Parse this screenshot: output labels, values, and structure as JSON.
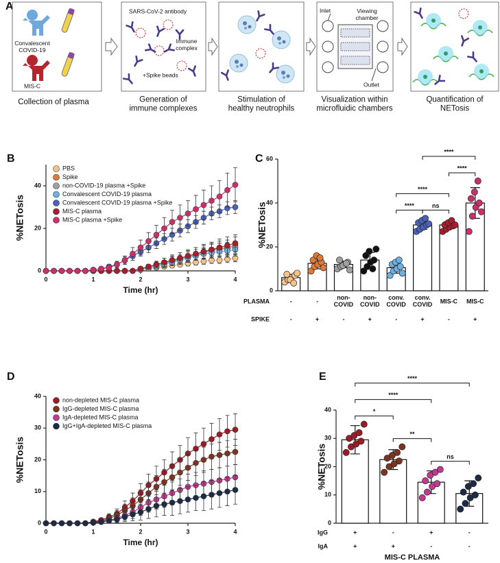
{
  "panel_a": {
    "label": "A",
    "steps": [
      {
        "caption": "Collection of plasma",
        "labels": [
          "Convalescent\nCOVID-19",
          "MIS-C"
        ]
      },
      {
        "caption": "Generation of\nimmune complexes",
        "labels": [
          "SARS-CoV-2 antibody",
          "Immune\ncomplex",
          "+Spike beads"
        ]
      },
      {
        "caption": "Stimulation of\nhealthy neutrophils"
      },
      {
        "caption": "Visualization within\nmicrofluidic chambers",
        "labels": [
          "Inlet",
          "Viewing\nchamber",
          "Outlet"
        ]
      },
      {
        "caption": "Quantification of\nNETosis"
      }
    ]
  },
  "chart_data": [
    {
      "type": "line",
      "panel": "B",
      "ylabel": "%NETosis",
      "xlabel": "Time (hr)",
      "x": [
        0,
        0.167,
        0.333,
        0.5,
        0.667,
        0.833,
        1,
        1.167,
        1.333,
        1.5,
        1.667,
        1.833,
        2,
        2.167,
        2.333,
        2.5,
        2.667,
        2.833,
        3,
        3.167,
        3.333,
        3.5,
        3.667,
        3.833,
        4
      ],
      "xlim": [
        0,
        4
      ],
      "xticks": [
        0,
        1,
        2,
        3,
        4
      ],
      "ylim": [
        0,
        50
      ],
      "yticks": [
        0,
        20,
        40
      ],
      "series": [
        {
          "name": "PBS",
          "color": "#f5c28a",
          "values": [
            0,
            0,
            0,
            0,
            0,
            0,
            0,
            0,
            0,
            0,
            0,
            0,
            0.5,
            1,
            1.5,
            2,
            2.5,
            3,
            3.5,
            4,
            4.5,
            5,
            5,
            5.5,
            6
          ],
          "errors": [
            0,
            0,
            0,
            0,
            0,
            0,
            0,
            0,
            0,
            0,
            0,
            0,
            0.3,
            0.5,
            0.7,
            0.8,
            1,
            1,
            1.2,
            1.3,
            1.4,
            1.5,
            1.5,
            1.6,
            1.7
          ]
        },
        {
          "name": "Spike",
          "color": "#e07a3a",
          "values": [
            0,
            0,
            0,
            0,
            0,
            0,
            0,
            0,
            0,
            0,
            0,
            0,
            1,
            2,
            3,
            4,
            5,
            6,
            7,
            8,
            9,
            10,
            10.5,
            11,
            12
          ],
          "errors": [
            0,
            0,
            0,
            0,
            0,
            0,
            0,
            0,
            0,
            0,
            0,
            0,
            0.5,
            1,
            1.5,
            2,
            2,
            2.5,
            2.5,
            3,
            3,
            3,
            3.5,
            3.5,
            4
          ]
        },
        {
          "name": "non-COVID-19 plasma +Spike",
          "color": "#a0a0a0",
          "values": [
            0,
            0,
            0,
            0,
            0,
            0,
            0,
            0,
            0,
            0,
            0,
            0,
            1,
            1.5,
            2.5,
            3.5,
            4.5,
            5.5,
            6.5,
            7.5,
            8.5,
            9.5,
            10,
            10.5,
            11
          ],
          "errors": [
            0,
            0,
            0,
            0,
            0,
            0,
            0,
            0,
            0,
            0,
            0,
            0,
            0.5,
            1,
            1.5,
            1.5,
            2,
            2,
            2.5,
            2.5,
            2.5,
            3,
            3,
            3,
            3
          ]
        },
        {
          "name": "Convalescent COVID-19 plasma",
          "color": "#6fb0e0",
          "values": [
            0,
            0,
            0,
            0,
            0,
            0,
            0,
            0,
            0,
            0,
            0,
            0,
            0.5,
            1.5,
            2,
            3,
            4,
            5,
            6,
            7,
            8,
            8.5,
            9,
            9.5,
            10
          ],
          "errors": [
            0,
            0,
            0,
            0,
            0,
            0,
            0,
            0,
            0,
            0,
            0,
            0,
            0.5,
            0.8,
            1,
            1.5,
            1.5,
            2,
            2,
            2,
            2.5,
            2.5,
            2.5,
            3,
            3
          ]
        },
        {
          "name": "Convalescent COVID-19 plasma +Spike",
          "color": "#4a62b8",
          "values": [
            0,
            0,
            0,
            0,
            0,
            0,
            0.5,
            1,
            2,
            3,
            5,
            7,
            9,
            11,
            13,
            15,
            17,
            19,
            21,
            23,
            25,
            27,
            28,
            29.5,
            30
          ],
          "errors": [
            0,
            0,
            0,
            0,
            0,
            0,
            0.3,
            0.5,
            1,
            1,
            1.5,
            2,
            2,
            2.5,
            2.5,
            2.5,
            3,
            3,
            3,
            3,
            3,
            3,
            3,
            3,
            3
          ]
        },
        {
          "name": "MIS-C plasma",
          "color": "#a81e2c",
          "values": [
            0,
            0,
            0,
            0,
            0,
            0,
            0,
            0,
            0,
            0,
            0,
            0,
            1,
            2,
            3,
            4,
            5,
            6,
            7,
            8,
            9,
            10,
            11,
            12,
            13
          ],
          "errors": [
            0,
            0,
            0,
            0,
            0,
            0,
            0,
            0,
            0,
            0,
            0,
            0,
            0.5,
            1,
            1.5,
            2,
            2.5,
            2.5,
            3,
            3,
            3.5,
            3.5,
            4,
            4,
            4
          ]
        },
        {
          "name": "MIS-C plasma +Spike",
          "color": "#cc2f6a",
          "values": [
            0,
            0,
            0,
            0,
            0,
            0,
            0.5,
            1,
            1.5,
            3,
            5,
            8,
            11,
            14,
            17,
            20,
            23,
            25,
            27,
            29,
            31,
            33,
            35,
            38,
            40.5
          ],
          "errors": [
            0,
            0,
            0,
            0,
            0,
            0,
            0.3,
            0.5,
            1,
            1.5,
            2,
            3,
            3.5,
            4,
            4.5,
            5,
            5.5,
            6,
            6,
            6.5,
            7,
            7,
            7.5,
            8,
            8
          ]
        }
      ]
    },
    {
      "type": "bar",
      "panel": "C",
      "ylabel": "%NETosis",
      "ylim": [
        0,
        60
      ],
      "yticks": [
        0,
        20,
        40,
        60
      ],
      "values": [
        6,
        12.5,
        12,
        14,
        10.5,
        30,
        30,
        40
      ],
      "errors": [
        1.5,
        2.5,
        1.5,
        3.5,
        2.5,
        2,
        1.5,
        7
      ],
      "colors": [
        "#f5c28a",
        "#e07a3a",
        "#a0a0a0",
        "#111111",
        "#6fb0e0",
        "#4a62b8",
        "#a81e2c",
        "#cc2f6a"
      ],
      "points": [
        [
          4,
          5,
          6,
          7,
          7.5,
          5,
          3.5,
          8
        ],
        [
          9,
          11,
          12,
          13,
          14,
          16,
          15,
          10.5
        ],
        [
          10,
          11,
          12,
          13,
          14,
          11.5,
          12.5,
          9.5
        ],
        [
          9,
          11,
          13,
          14,
          16,
          18,
          10,
          19
        ],
        [
          7,
          9,
          10,
          11,
          12,
          13,
          14,
          8
        ],
        [
          27,
          28,
          29,
          30,
          31,
          32,
          33,
          30.5
        ],
        [
          27,
          28,
          29,
          29.5,
          30,
          31,
          32,
          30
        ],
        [
          27,
          34,
          38,
          40,
          42,
          45,
          50,
          36
        ]
      ],
      "rows": [
        {
          "label": "PLASMA",
          "values": [
            "-",
            "-",
            "non-\nCOVID",
            "non-\nCOVID",
            "conv.\nCOVID",
            "conv.\nCOVID",
            "MIS-C",
            "MIS-C"
          ]
        },
        {
          "label": "SPIKE",
          "values": [
            "-",
            "+",
            "-",
            "+",
            "-",
            "+",
            "-",
            "+"
          ]
        }
      ],
      "comparisons": [
        {
          "pair": [
            4,
            5
          ],
          "label": "****"
        },
        {
          "pair": [
            5,
            6
          ],
          "label": "ns"
        },
        {
          "pair": [
            6,
            7
          ],
          "label": "****"
        },
        {
          "pair": [
            4,
            6
          ],
          "label": "****"
        },
        {
          "pair": [
            5,
            7
          ],
          "label": "****"
        }
      ]
    },
    {
      "type": "line",
      "panel": "D",
      "ylabel": "%NETosis",
      "xlabel": "Time (hr)",
      "x": [
        0,
        0.167,
        0.333,
        0.5,
        0.667,
        0.833,
        1,
        1.167,
        1.333,
        1.5,
        1.667,
        1.833,
        2,
        2.167,
        2.333,
        2.5,
        2.667,
        2.833,
        3,
        3.167,
        3.333,
        3.5,
        3.667,
        3.833,
        4
      ],
      "xlim": [
        0,
        4
      ],
      "xticks": [
        0,
        1,
        2,
        3,
        4
      ],
      "ylim": [
        0,
        40
      ],
      "yticks": [
        0,
        10,
        20,
        30,
        40
      ],
      "series": [
        {
          "name": "non-depleted MIS-C plasma",
          "color": "#9b1c26",
          "values": [
            0,
            0,
            0,
            0,
            0,
            0,
            0.5,
            1,
            2,
            3,
            5,
            7,
            9.5,
            12,
            14,
            16,
            18,
            20,
            22,
            23.5,
            25,
            26.5,
            28,
            29,
            29.5
          ],
          "errors": [
            0,
            0,
            0,
            0,
            0,
            0,
            0.3,
            0.5,
            1,
            1.5,
            2,
            2.5,
            3,
            3.5,
            4,
            4,
            4.5,
            4.5,
            5,
            5,
            5,
            5,
            5,
            5,
            5
          ]
        },
        {
          "name": "IgG-depleted MIS-C plasma",
          "color": "#7b3520",
          "values": [
            0,
            0,
            0,
            0,
            0,
            0,
            0.3,
            0.7,
            1.5,
            2.5,
            4,
            5.5,
            7.5,
            9.5,
            11.5,
            13,
            14.5,
            16,
            17.5,
            19,
            20,
            21,
            21.5,
            22,
            22.5
          ],
          "errors": [
            0,
            0,
            0,
            0,
            0,
            0,
            0.3,
            0.5,
            1,
            1.5,
            2,
            2.5,
            3,
            3.5,
            3.5,
            4,
            4,
            4,
            4,
            4,
            4,
            4,
            4,
            4,
            4
          ]
        },
        {
          "name": "IgA-depleted MIS-C plasma",
          "color": "#c23a8f",
          "values": [
            0,
            0,
            0,
            0,
            0,
            0,
            0.2,
            0.5,
            1,
            1.5,
            2.5,
            3.5,
            5,
            6.5,
            7.5,
            8.5,
            9.5,
            10.5,
            11.5,
            12,
            12.5,
            13,
            13.5,
            14,
            14.5
          ],
          "errors": [
            0,
            0,
            0,
            0,
            0,
            0,
            0.2,
            0.4,
            0.7,
            1,
            1.5,
            2,
            2.5,
            3,
            3,
            3.5,
            3.5,
            3.5,
            4,
            4,
            4,
            4,
            4,
            4,
            4
          ]
        },
        {
          "name": "IgG+IgA-depleted MIS-C plasma",
          "color": "#1e2b44",
          "values": [
            0,
            0,
            0,
            0,
            0,
            0,
            0.2,
            0.4,
            0.8,
            1.2,
            2,
            2.8,
            3.5,
            4.5,
            5.5,
            6,
            6.5,
            7,
            7.5,
            8,
            8.5,
            9,
            9.5,
            10,
            10.5
          ],
          "errors": [
            0,
            0,
            0,
            0,
            0,
            0,
            0.2,
            0.4,
            0.7,
            1,
            1.5,
            2,
            2.5,
            3,
            3.5,
            3.5,
            4,
            4,
            4,
            4,
            4.5,
            4.5,
            4.5,
            4.5,
            4.5
          ]
        }
      ]
    },
    {
      "type": "bar",
      "panel": "E",
      "ylabel": "%NETosis",
      "xlabel": "MIS-C PLASMA",
      "ylim": [
        0,
        40
      ],
      "yticks": [
        0,
        10,
        20,
        30,
        40
      ],
      "values": [
        29.5,
        22.5,
        14.5,
        10.5
      ],
      "errors": [
        5,
        3.5,
        4,
        4.5
      ],
      "colors": [
        "#9b1c26",
        "#7b3520",
        "#c23a8f",
        "#1e2b44"
      ],
      "points": [
        [
          25,
          27,
          28,
          29,
          30,
          31,
          32,
          35
        ],
        [
          18,
          20,
          21,
          22,
          23,
          24,
          25,
          27
        ],
        [
          9,
          11,
          13,
          14,
          15,
          17,
          18,
          19
        ],
        [
          5,
          7,
          9,
          10,
          11,
          13,
          14,
          16
        ]
      ],
      "rows": [
        {
          "label": "IgG",
          "values": [
            "+",
            "-",
            "+",
            "-"
          ]
        },
        {
          "label": "IgA",
          "values": [
            "+",
            "+",
            "-",
            "-"
          ]
        }
      ],
      "comparisons": [
        {
          "pair": [
            0,
            1
          ],
          "label": "*"
        },
        {
          "pair": [
            1,
            2
          ],
          "label": "**"
        },
        {
          "pair": [
            2,
            3
          ],
          "label": "ns"
        },
        {
          "pair": [
            0,
            2
          ],
          "label": "****"
        },
        {
          "pair": [
            0,
            3
          ],
          "label": "****"
        }
      ]
    }
  ]
}
